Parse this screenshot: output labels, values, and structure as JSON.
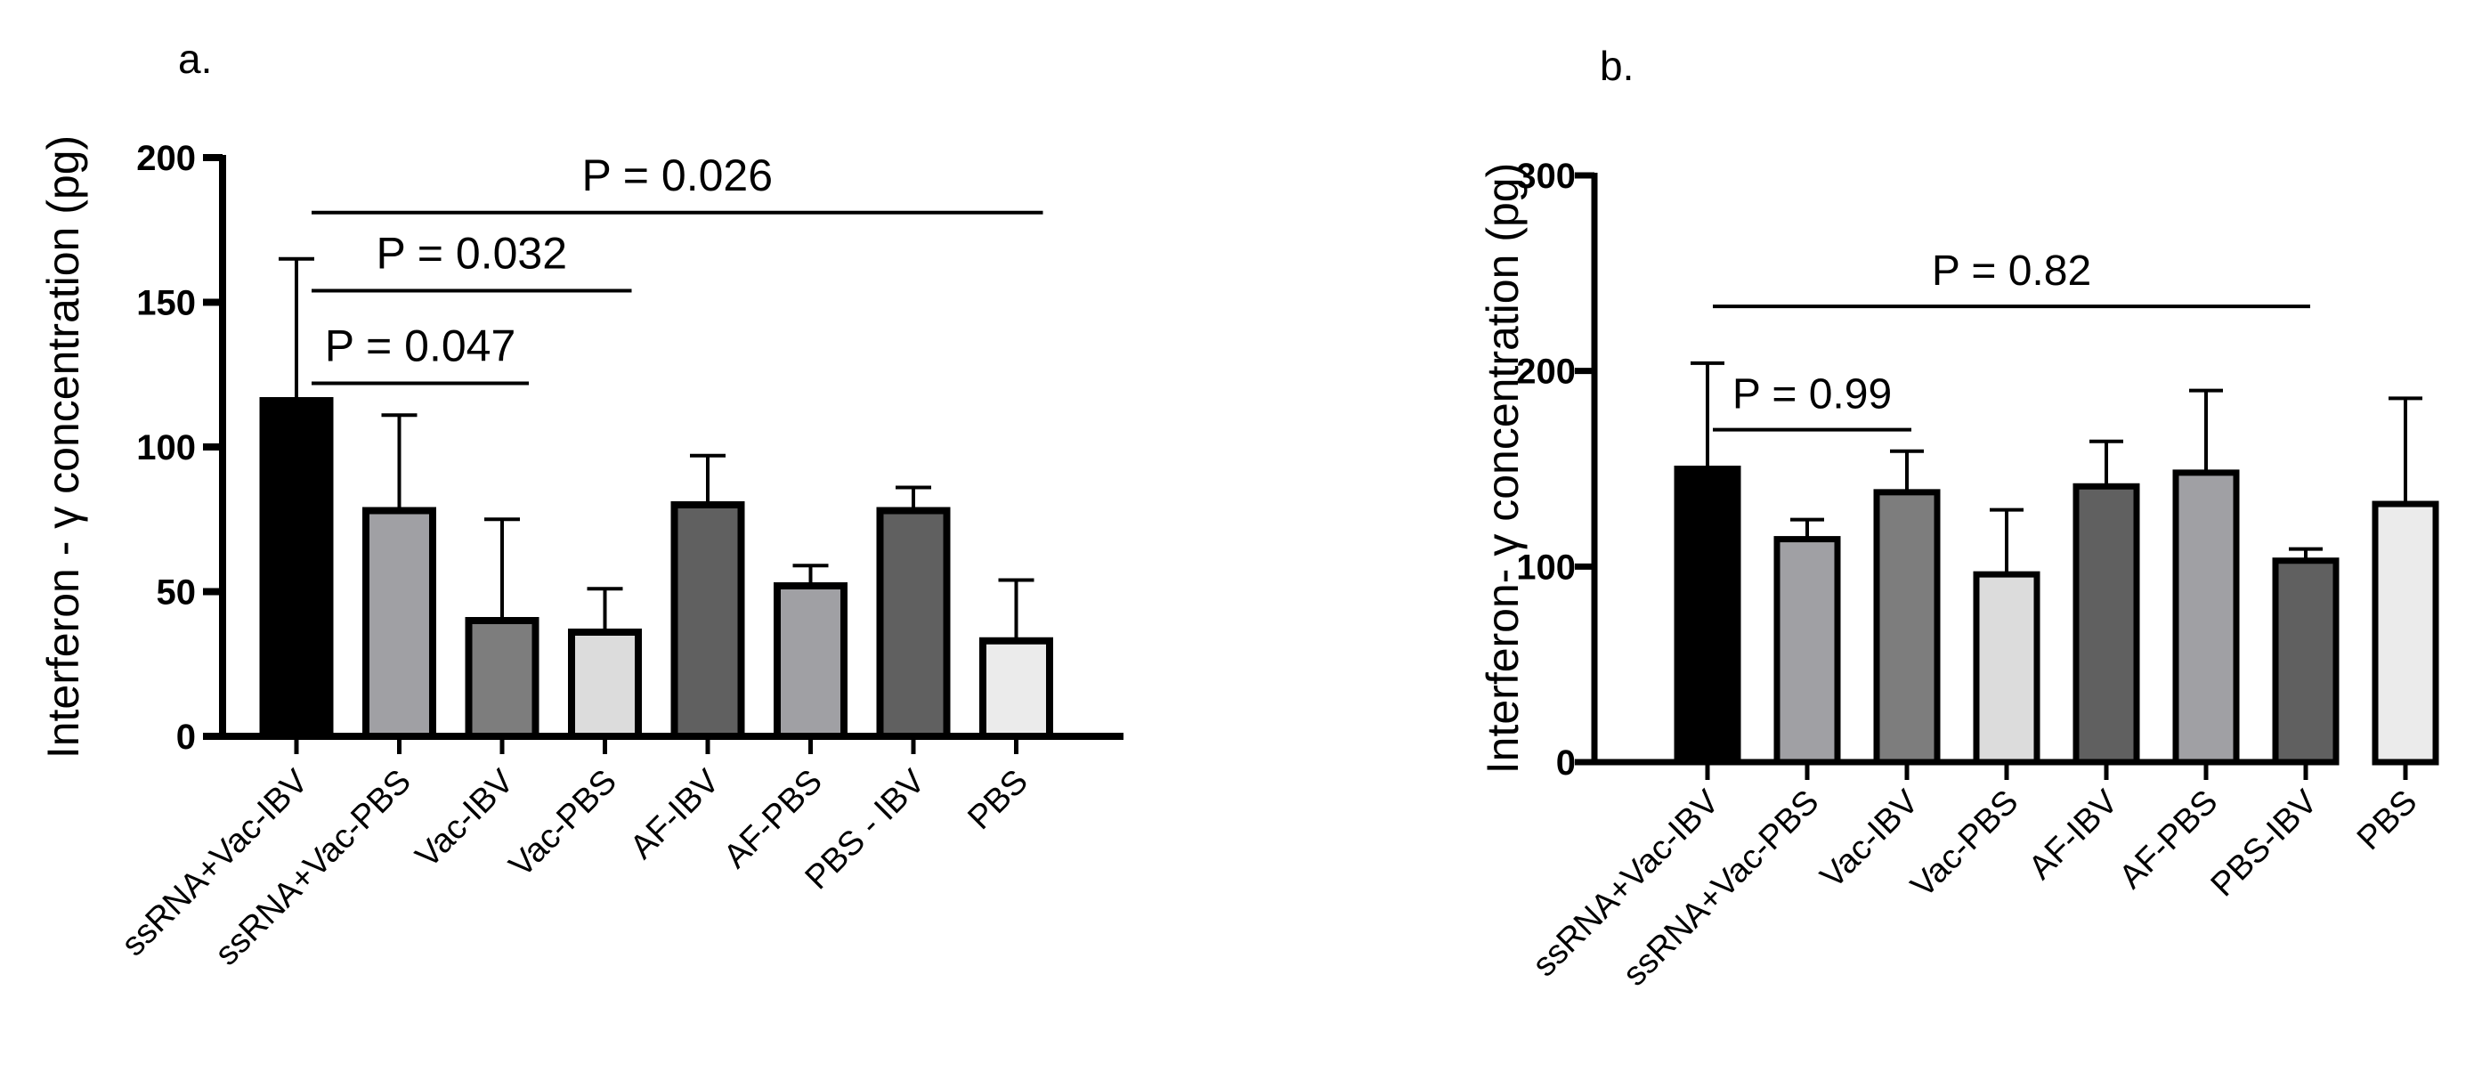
{
  "chart_data": [
    {
      "type": "bar",
      "panel_label": "a.",
      "title": "",
      "xlabel": "",
      "ylabel": "Interferon - γ concentration (pg)",
      "ylim": [
        0,
        200
      ],
      "yticks": [
        "0",
        "50",
        "100",
        "150",
        "200"
      ],
      "categories": [
        "ssRNA+Vac-IBV",
        "ssRNA+Vac-PBS",
        "Vac-IBV",
        "Vac-PBS",
        "AF-IBV",
        "AF-PBS",
        "PBS - IBV",
        "PBS"
      ],
      "values": [
        116,
        78,
        40,
        36,
        80,
        52,
        78,
        33
      ],
      "errors": [
        49,
        33,
        35,
        15,
        17,
        7,
        8,
        21
      ],
      "colors": [
        "#000000",
        "#a0a0a4",
        "#7d7d7d",
        "#dcdcdc",
        "#606060",
        "#a0a0a4",
        "#606060",
        "#ebebeb"
      ],
      "annotations": [
        {
          "label": "P = 0.026",
          "from": 0,
          "to": 7,
          "y": 181
        },
        {
          "label": "P = 0.032",
          "from": 0,
          "to": 3,
          "y": 154
        },
        {
          "label": "P = 0.047",
          "from": 0,
          "to": 2,
          "y": 122
        }
      ]
    },
    {
      "type": "bar",
      "panel_label": "b.",
      "title": "",
      "xlabel": "",
      "ylabel": "Interferon- γ concentration (pg)",
      "ylim": [
        0,
        300
      ],
      "yticks": [
        "0",
        "100",
        "200",
        "300"
      ],
      "categories": [
        "ssRNA+Vac-IBV",
        "ssRNA+Vac-PBS",
        "Vac-IBV",
        "Vac-PBS",
        "AF-IBV",
        "AF-PBS",
        "PBS-IBV",
        "PBS"
      ],
      "values": [
        150,
        114,
        138,
        96,
        141,
        148,
        103,
        132
      ],
      "errors": [
        54,
        10,
        21,
        33,
        23,
        42,
        6,
        54
      ],
      "colors": [
        "#000000",
        "#a0a0a4",
        "#7d7d7d",
        "#dcdcdc",
        "#606060",
        "#a0a0a4",
        "#606060",
        "#ebebeb"
      ],
      "annotations": [
        {
          "label": "P = 0.82",
          "from": 0,
          "to": 6,
          "y": 233
        },
        {
          "label": "P = 0.99",
          "from": 0,
          "to": 2,
          "y": 170
        }
      ]
    }
  ]
}
